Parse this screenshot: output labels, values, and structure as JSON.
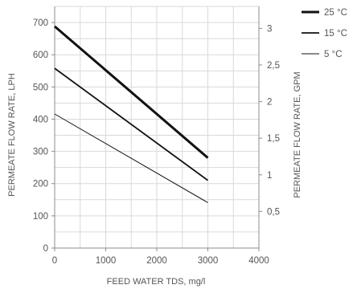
{
  "chart_data": {
    "type": "line",
    "xlabel": "FEED WATER TDS, mg/l",
    "ylabel": "PERMEATE FLOW RATE, LPH",
    "y2label": "PERMEATE FLOW RATE, GPM",
    "xlim": [
      0,
      4000
    ],
    "ylim": [
      0,
      750
    ],
    "y2lim": [
      0,
      3.3
    ],
    "x_ticks": [
      "0",
      "1000",
      "2000",
      "3000",
      "4000"
    ],
    "y_ticks": [
      "0",
      "100",
      "200",
      "300",
      "400",
      "500",
      "600",
      "700"
    ],
    "y2_ticks": [
      "0,5",
      "1",
      "1,5",
      "2",
      "2,5",
      "3"
    ],
    "grid": true,
    "legend_position": "top-right",
    "series": [
      {
        "name": "25 °C",
        "x": [
          0,
          3000
        ],
        "y": [
          688,
          280
        ],
        "line_width": "thick"
      },
      {
        "name": "15 °C",
        "x": [
          0,
          3000
        ],
        "y": [
          558,
          210
        ],
        "line_width": "medium"
      },
      {
        "name": "5 °C",
        "x": [
          0,
          3000
        ],
        "y": [
          416,
          141
        ],
        "line_width": "thin"
      }
    ]
  }
}
